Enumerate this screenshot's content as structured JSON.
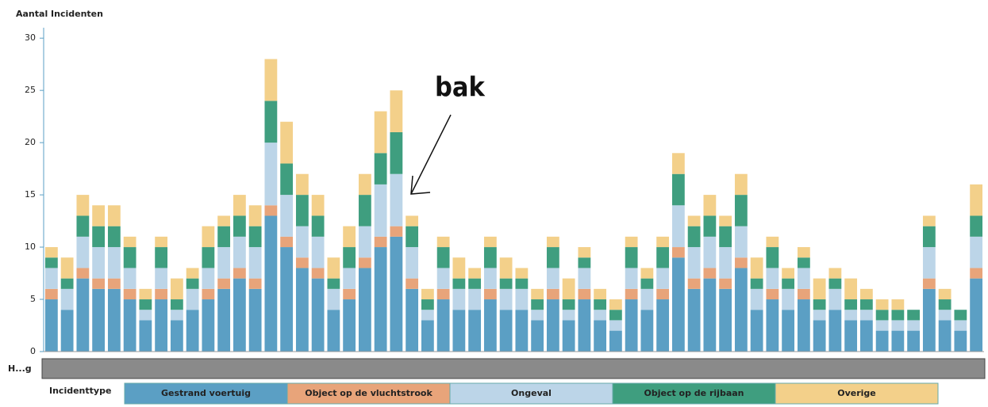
{
  "chart_data": {
    "type": "stacked-bar",
    "y_label": "Aantal Incidenten",
    "annotation": "bak",
    "scrollbar_label": "H...g",
    "legend_title": "Incidenttype",
    "ylim": [
      0,
      31
    ],
    "yticks": [
      0,
      5,
      10,
      15,
      20,
      25,
      30
    ],
    "series": [
      {
        "name": "Gestrand voertuig",
        "color": "#5b9fc4",
        "values": [
          5,
          4,
          7,
          6,
          6,
          5,
          3,
          5,
          3,
          4,
          5,
          6,
          7,
          6,
          13,
          10,
          8,
          7,
          4,
          5,
          8,
          10,
          11,
          6,
          3,
          5,
          4,
          4,
          5,
          4,
          4,
          3,
          5,
          3,
          5,
          3,
          2,
          5,
          4,
          5,
          9,
          6,
          7,
          6,
          8,
          4,
          5,
          4,
          5,
          3,
          4,
          3,
          3,
          2,
          2,
          2,
          6,
          3,
          2,
          7
        ]
      },
      {
        "name": "Object op de vluchtstrook",
        "color": "#e8a47a",
        "values": [
          1,
          0,
          1,
          1,
          1,
          1,
          0,
          1,
          0,
          0,
          1,
          1,
          1,
          1,
          1,
          1,
          1,
          1,
          0,
          1,
          1,
          1,
          1,
          1,
          0,
          1,
          0,
          0,
          1,
          0,
          0,
          0,
          1,
          0,
          1,
          0,
          0,
          1,
          0,
          1,
          1,
          1,
          1,
          1,
          1,
          0,
          1,
          0,
          1,
          0,
          0,
          0,
          0,
          0,
          0,
          0,
          1,
          0,
          0,
          1
        ]
      },
      {
        "name": "Ongeval",
        "color": "#bcd5e8",
        "values": [
          2,
          2,
          3,
          3,
          3,
          2,
          1,
          2,
          1,
          2,
          2,
          3,
          3,
          3,
          6,
          4,
          3,
          3,
          2,
          2,
          3,
          5,
          5,
          3,
          1,
          2,
          2,
          2,
          2,
          2,
          2,
          1,
          2,
          1,
          2,
          1,
          1,
          2,
          2,
          2,
          4,
          3,
          3,
          3,
          3,
          2,
          2,
          2,
          2,
          1,
          2,
          1,
          1,
          1,
          1,
          1,
          3,
          1,
          1,
          3
        ]
      },
      {
        "name": "Object op de rijbaan",
        "color": "#3f9e7f",
        "values": [
          1,
          1,
          2,
          2,
          2,
          2,
          1,
          2,
          1,
          1,
          2,
          2,
          2,
          2,
          4,
          3,
          3,
          2,
          1,
          2,
          3,
          3,
          4,
          2,
          1,
          2,
          1,
          1,
          2,
          1,
          1,
          1,
          2,
          1,
          1,
          1,
          1,
          2,
          1,
          2,
          3,
          2,
          2,
          2,
          3,
          1,
          2,
          1,
          1,
          1,
          1,
          1,
          1,
          1,
          1,
          1,
          2,
          1,
          1,
          2
        ]
      },
      {
        "name": "Overige",
        "color": "#f3d08a",
        "values": [
          1,
          2,
          2,
          2,
          2,
          1,
          1,
          1,
          2,
          1,
          2,
          1,
          2,
          2,
          4,
          4,
          2,
          2,
          2,
          2,
          2,
          4,
          4,
          1,
          1,
          1,
          2,
          1,
          1,
          2,
          1,
          1,
          1,
          2,
          1,
          1,
          1,
          1,
          1,
          1,
          2,
          1,
          2,
          1,
          2,
          2,
          1,
          1,
          1,
          2,
          1,
          2,
          1,
          1,
          1,
          0,
          1,
          1,
          0,
          3
        ]
      }
    ]
  }
}
